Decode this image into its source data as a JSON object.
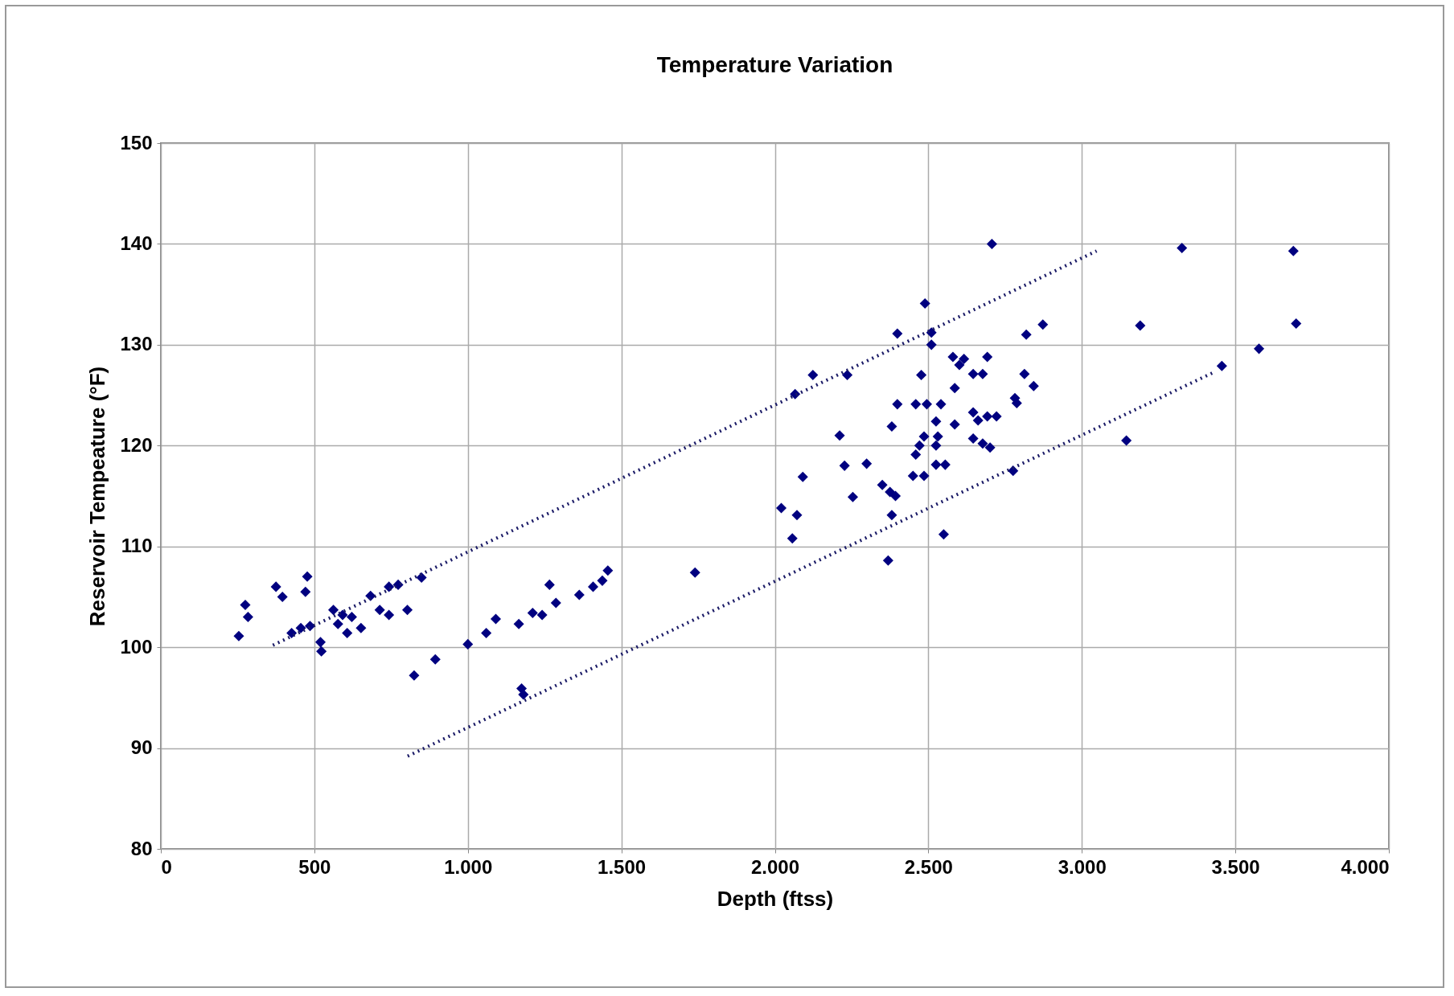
{
  "chart_data": {
    "type": "scatter",
    "title": "Temperature Variation",
    "xlabel": "Depth (ftss)",
    "ylabel": "Reservoir Tempeature (°F)",
    "xlim": [
      0,
      4000
    ],
    "ylim": [
      80,
      150
    ],
    "xticks": [
      0,
      {
        "value": 500,
        "label": "500"
      },
      {
        "value": 1000,
        "label": "1.000"
      },
      {
        "value": 1500,
        "label": "1.500"
      },
      {
        "value": 2000,
        "label": "2.000"
      },
      {
        "value": 2500,
        "label": "2.500"
      },
      {
        "value": 3000,
        "label": "3.000"
      },
      {
        "value": 3500,
        "label": "3.500"
      },
      {
        "value": 4000,
        "label": "4.000"
      }
    ],
    "yticks": [
      80,
      90,
      100,
      110,
      120,
      130,
      140,
      150
    ],
    "grid": true,
    "marker": "diamond",
    "series": [
      {
        "color": "#000080",
        "x": [
          254,
          275,
          284,
          375,
          396,
          477,
          471,
          426,
          456,
          486,
          520,
          523,
          562,
          592,
          622,
          577,
          607,
          652,
          683,
          713,
          743,
          773,
          743,
          803,
          849,
          825,
          894,
          1000,
          1060,
          1091,
          1166,
          1211,
          1242,
          1266,
          1287,
          1363,
          1408,
          1438,
          1456,
          1175,
          1181,
          1740,
          2021,
          2057,
          2072,
          2091,
          2066,
          2124,
          2236,
          2211,
          2227,
          2254,
          2299,
          2369,
          2381,
          2381,
          2399,
          2489,
          2707,
          2399,
          2459,
          2495,
          2541,
          2477,
          2510,
          2510,
          2350,
          2375,
          2393,
          2450,
          2486,
          2459,
          2471,
          2525,
          2555,
          2525,
          2531,
          2525,
          2486,
          2586,
          2586,
          2580,
          2616,
          2646,
          2677,
          2601,
          2646,
          2662,
          2646,
          2677,
          2692,
          2692,
          2722,
          2701,
          2782,
          2788,
          2776,
          2813,
          2843,
          2819,
          2873,
          2550,
          3145,
          3190,
          3326,
          3456,
          3577,
          3689,
          3698
        ],
        "values": [
          101.1,
          104.2,
          103,
          106,
          105,
          107,
          105.5,
          101.4,
          101.9,
          102.1,
          100.5,
          99.6,
          103.7,
          103.2,
          103,
          102.3,
          101.4,
          101.9,
          105.1,
          103.7,
          106,
          106.2,
          103.2,
          103.7,
          106.9,
          97.2,
          98.8,
          100.3,
          101.4,
          102.8,
          102.3,
          103.4,
          103.2,
          106.2,
          104.4,
          105.2,
          106,
          106.6,
          107.6,
          95.9,
          95.3,
          107.4,
          113.8,
          110.8,
          113.1,
          116.9,
          125.1,
          127,
          127,
          121,
          118,
          114.9,
          118.2,
          108.6,
          113.1,
          121.9,
          131.1,
          134.1,
          140,
          124.1,
          124.1,
          124.1,
          124.1,
          127,
          131.2,
          130,
          116.1,
          115.4,
          115,
          117,
          117,
          119.1,
          120,
          118.1,
          118.1,
          120,
          120.9,
          122.4,
          120.9,
          122.1,
          125.7,
          128.8,
          128.6,
          127.1,
          127.1,
          128,
          123.3,
          122.5,
          120.7,
          120.2,
          122.9,
          128.8,
          122.9,
          119.8,
          124.7,
          124.2,
          117.5,
          127.1,
          125.9,
          131,
          132,
          111.2,
          120.5,
          131.9,
          139.6,
          127.9,
          129.6,
          139.3,
          132.1
        ]
      },
      {
        "type": "line",
        "color": "#1a1a66",
        "line_style": "dotted",
        "marker": "none",
        "x": [
          365,
          3048
        ],
        "values": [
          100.2,
          139.3
        ]
      },
      {
        "type": "line",
        "color": "#1a1a66",
        "line_style": "dotted",
        "marker": "none",
        "x": [
          804,
          3432
        ],
        "values": [
          89.2,
          127.3
        ]
      }
    ]
  }
}
